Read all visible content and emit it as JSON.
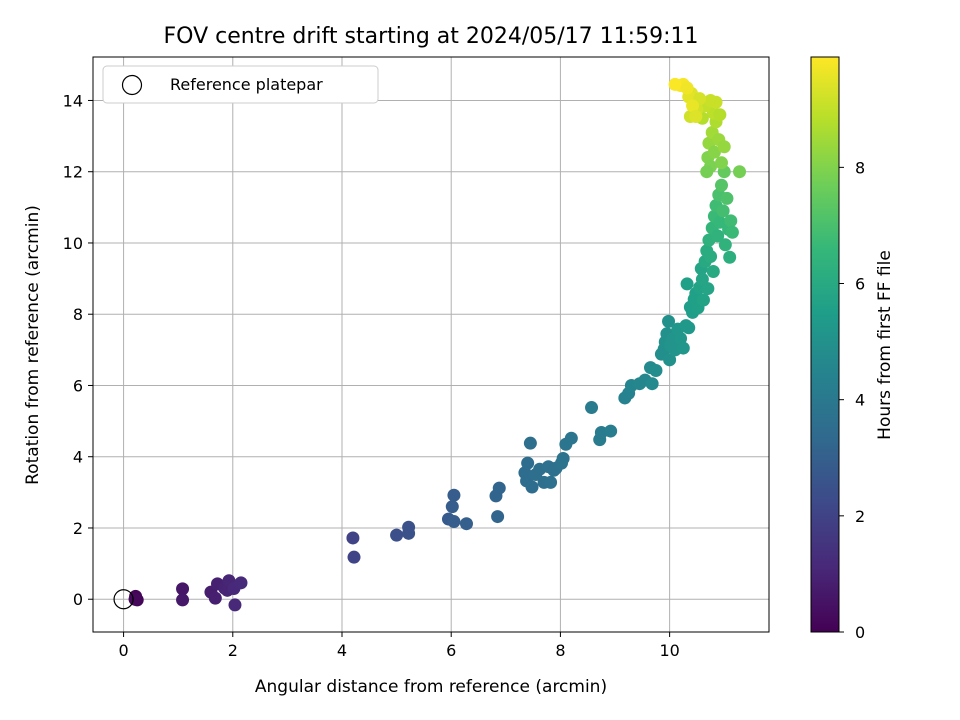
{
  "chart_data": {
    "type": "scatter",
    "title": "FOV centre drift starting at 2024/05/17 11:59:11",
    "xlabel": "Angular distance from reference (arcmin)",
    "ylabel": "Rotation from reference (arcmin)",
    "xlim": [
      -0.56,
      11.82
    ],
    "ylim": [
      -0.92,
      15.22
    ],
    "xticks": [
      0,
      2,
      4,
      6,
      8,
      10
    ],
    "yticks": [
      0,
      2,
      4,
      6,
      8,
      10,
      12,
      14
    ],
    "grid": true,
    "legend": {
      "position": "top-left",
      "entries": [
        "Reference platepar"
      ]
    },
    "reference_point": {
      "x": 0,
      "y": 0,
      "label": "Reference platepar",
      "marker": "open-circle"
    },
    "colorbar": {
      "label": "Hours from first FF file",
      "colormap": "viridis",
      "range": [
        0,
        9.9
      ],
      "ticks": [
        0,
        2,
        4,
        6,
        8
      ]
    },
    "color_scale": [
      "#440154",
      "#482878",
      "#3e4989",
      "#31688e",
      "#26828e",
      "#1f9e89",
      "#35b779",
      "#6ece58",
      "#b5de2b",
      "#fde725"
    ],
    "series": [
      {
        "color_variable": "hours",
        "points": [
          {
            "x": 0.22,
            "y": 0.08,
            "c": 0.1
          },
          {
            "x": 0.25,
            "y": -0.02,
            "c": 0.15
          },
          {
            "x": 0.21,
            "y": 0.0,
            "c": 0.2
          },
          {
            "x": 1.08,
            "y": 0.29,
            "c": 0.6
          },
          {
            "x": 1.08,
            "y": -0.02,
            "c": 0.65
          },
          {
            "x": 1.6,
            "y": 0.2,
            "c": 0.8
          },
          {
            "x": 1.68,
            "y": 0.03,
            "c": 0.85
          },
          {
            "x": 1.72,
            "y": 0.43,
            "c": 0.9
          },
          {
            "x": 1.85,
            "y": 0.31,
            "c": 0.95
          },
          {
            "x": 1.9,
            "y": 0.25,
            "c": 1.0
          },
          {
            "x": 1.93,
            "y": 0.52,
            "c": 1.05
          },
          {
            "x": 2.02,
            "y": 0.3,
            "c": 1.1
          },
          {
            "x": 2.04,
            "y": -0.16,
            "c": 1.1
          },
          {
            "x": 2.15,
            "y": 0.46,
            "c": 1.2
          },
          {
            "x": 4.2,
            "y": 1.72,
            "c": 2.0
          },
          {
            "x": 4.22,
            "y": 1.18,
            "c": 2.05
          },
          {
            "x": 5.0,
            "y": 1.8,
            "c": 2.4
          },
          {
            "x": 5.22,
            "y": 2.02,
            "c": 2.5
          },
          {
            "x": 5.22,
            "y": 1.85,
            "c": 2.5
          },
          {
            "x": 5.95,
            "y": 2.25,
            "c": 2.8
          },
          {
            "x": 6.02,
            "y": 2.6,
            "c": 2.9
          },
          {
            "x": 6.05,
            "y": 2.92,
            "c": 2.9
          },
          {
            "x": 6.05,
            "y": 2.18,
            "c": 2.9
          },
          {
            "x": 6.28,
            "y": 2.12,
            "c": 3.0
          },
          {
            "x": 6.82,
            "y": 2.9,
            "c": 3.2
          },
          {
            "x": 6.88,
            "y": 3.12,
            "c": 3.2
          },
          {
            "x": 6.85,
            "y": 2.32,
            "c": 3.2
          },
          {
            "x": 7.35,
            "y": 3.55,
            "c": 3.5
          },
          {
            "x": 7.4,
            "y": 3.82,
            "c": 3.5
          },
          {
            "x": 7.45,
            "y": 4.38,
            "c": 3.6
          },
          {
            "x": 7.38,
            "y": 3.32,
            "c": 3.5
          },
          {
            "x": 7.48,
            "y": 3.15,
            "c": 3.5
          },
          {
            "x": 7.55,
            "y": 3.5,
            "c": 3.6
          },
          {
            "x": 7.62,
            "y": 3.65,
            "c": 3.6
          },
          {
            "x": 7.7,
            "y": 3.28,
            "c": 3.6
          },
          {
            "x": 7.78,
            "y": 3.72,
            "c": 3.7
          },
          {
            "x": 7.82,
            "y": 3.28,
            "c": 3.7
          },
          {
            "x": 7.88,
            "y": 3.62,
            "c": 3.7
          },
          {
            "x": 7.92,
            "y": 3.68,
            "c": 3.7
          },
          {
            "x": 8.02,
            "y": 3.82,
            "c": 3.8
          },
          {
            "x": 8.05,
            "y": 3.95,
            "c": 3.8
          },
          {
            "x": 8.1,
            "y": 4.35,
            "c": 3.9
          },
          {
            "x": 8.2,
            "y": 4.52,
            "c": 3.9
          },
          {
            "x": 8.57,
            "y": 5.38,
            "c": 4.1
          },
          {
            "x": 8.72,
            "y": 4.48,
            "c": 4.1
          },
          {
            "x": 8.75,
            "y": 4.68,
            "c": 4.1
          },
          {
            "x": 8.92,
            "y": 4.72,
            "c": 4.2
          },
          {
            "x": 9.18,
            "y": 5.65,
            "c": 4.4
          },
          {
            "x": 9.25,
            "y": 5.78,
            "c": 4.4
          },
          {
            "x": 9.3,
            "y": 6.0,
            "c": 4.5
          },
          {
            "x": 9.45,
            "y": 6.05,
            "c": 4.6
          },
          {
            "x": 9.55,
            "y": 6.15,
            "c": 4.6
          },
          {
            "x": 9.65,
            "y": 6.5,
            "c": 4.7
          },
          {
            "x": 9.68,
            "y": 6.05,
            "c": 4.7
          },
          {
            "x": 9.75,
            "y": 6.42,
            "c": 4.8
          },
          {
            "x": 9.85,
            "y": 6.88,
            "c": 4.9
          },
          {
            "x": 9.9,
            "y": 7.02,
            "c": 4.9
          },
          {
            "x": 9.92,
            "y": 7.22,
            "c": 5.0
          },
          {
            "x": 9.95,
            "y": 7.45,
            "c": 5.0
          },
          {
            "x": 9.98,
            "y": 7.8,
            "c": 5.0
          },
          {
            "x": 10.0,
            "y": 6.72,
            "c": 5.0
          },
          {
            "x": 10.02,
            "y": 7.12,
            "c": 5.1
          },
          {
            "x": 10.05,
            "y": 7.3,
            "c": 5.1
          },
          {
            "x": 10.1,
            "y": 7.0,
            "c": 5.1
          },
          {
            "x": 10.15,
            "y": 7.58,
            "c": 5.2
          },
          {
            "x": 10.2,
            "y": 7.32,
            "c": 5.2
          },
          {
            "x": 10.25,
            "y": 7.05,
            "c": 5.2
          },
          {
            "x": 10.3,
            "y": 7.68,
            "c": 5.3
          },
          {
            "x": 10.35,
            "y": 7.62,
            "c": 5.3
          },
          {
            "x": 10.32,
            "y": 8.85,
            "c": 5.6
          },
          {
            "x": 10.38,
            "y": 8.2,
            "c": 5.5
          },
          {
            "x": 10.42,
            "y": 8.05,
            "c": 5.5
          },
          {
            "x": 10.45,
            "y": 8.42,
            "c": 5.6
          },
          {
            "x": 10.48,
            "y": 8.58,
            "c": 5.6
          },
          {
            "x": 10.52,
            "y": 8.18,
            "c": 5.6
          },
          {
            "x": 10.55,
            "y": 8.75,
            "c": 5.7
          },
          {
            "x": 10.58,
            "y": 9.28,
            "c": 5.8
          },
          {
            "x": 10.6,
            "y": 8.98,
            "c": 5.8
          },
          {
            "x": 10.62,
            "y": 8.4,
            "c": 5.7
          },
          {
            "x": 10.65,
            "y": 9.48,
            "c": 6.0
          },
          {
            "x": 10.68,
            "y": 9.78,
            "c": 6.1
          },
          {
            "x": 10.7,
            "y": 8.72,
            "c": 5.8
          },
          {
            "x": 10.72,
            "y": 10.08,
            "c": 6.3
          },
          {
            "x": 10.75,
            "y": 9.62,
            "c": 6.1
          },
          {
            "x": 10.78,
            "y": 10.42,
            "c": 6.5
          },
          {
            "x": 10.8,
            "y": 9.2,
            "c": 6.0
          },
          {
            "x": 10.82,
            "y": 10.75,
            "c": 6.7
          },
          {
            "x": 10.85,
            "y": 11.05,
            "c": 6.8
          },
          {
            "x": 10.88,
            "y": 10.2,
            "c": 6.4
          },
          {
            "x": 10.9,
            "y": 11.35,
            "c": 7.0
          },
          {
            "x": 10.92,
            "y": 10.58,
            "c": 6.6
          },
          {
            "x": 10.95,
            "y": 11.62,
            "c": 7.2
          },
          {
            "x": 10.98,
            "y": 10.9,
            "c": 6.9
          },
          {
            "x": 11.0,
            "y": 12.0,
            "c": 7.5
          },
          {
            "x": 11.02,
            "y": 9.95,
            "c": 6.4
          },
          {
            "x": 11.05,
            "y": 11.25,
            "c": 7.1
          },
          {
            "x": 11.08,
            "y": 10.38,
            "c": 6.6
          },
          {
            "x": 11.1,
            "y": 9.6,
            "c": 6.2
          },
          {
            "x": 11.12,
            "y": 10.62,
            "c": 6.8
          },
          {
            "x": 11.15,
            "y": 10.3,
            "c": 6.7
          },
          {
            "x": 11.28,
            "y": 12.0,
            "c": 7.8
          },
          {
            "x": 10.7,
            "y": 12.4,
            "c": 8.0
          },
          {
            "x": 10.72,
            "y": 12.8,
            "c": 8.3
          },
          {
            "x": 10.75,
            "y": 12.15,
            "c": 7.9
          },
          {
            "x": 10.78,
            "y": 13.1,
            "c": 8.5
          },
          {
            "x": 10.82,
            "y": 12.55,
            "c": 8.1
          },
          {
            "x": 10.85,
            "y": 13.4,
            "c": 8.7
          },
          {
            "x": 10.9,
            "y": 12.9,
            "c": 8.4
          },
          {
            "x": 10.95,
            "y": 12.25,
            "c": 8.0
          },
          {
            "x": 11.0,
            "y": 12.7,
            "c": 8.3
          },
          {
            "x": 10.8,
            "y": 13.65,
            "c": 8.9
          },
          {
            "x": 10.65,
            "y": 13.85,
            "c": 9.0
          },
          {
            "x": 10.75,
            "y": 14.0,
            "c": 9.1
          },
          {
            "x": 10.6,
            "y": 13.5,
            "c": 8.8
          },
          {
            "x": 10.68,
            "y": 12.0,
            "c": 7.8
          },
          {
            "x": 10.85,
            "y": 13.95,
            "c": 9.1
          },
          {
            "x": 10.92,
            "y": 13.6,
            "c": 8.8
          },
          {
            "x": 10.4,
            "y": 14.2,
            "c": 9.4
          },
          {
            "x": 10.45,
            "y": 13.95,
            "c": 9.3
          },
          {
            "x": 10.5,
            "y": 13.75,
            "c": 9.2
          },
          {
            "x": 10.35,
            "y": 14.1,
            "c": 9.5
          },
          {
            "x": 10.38,
            "y": 13.55,
            "c": 9.2
          },
          {
            "x": 10.55,
            "y": 14.05,
            "c": 9.3
          },
          {
            "x": 10.2,
            "y": 14.42,
            "c": 9.8
          },
          {
            "x": 10.25,
            "y": 14.45,
            "c": 9.8
          },
          {
            "x": 10.32,
            "y": 14.35,
            "c": 9.7
          },
          {
            "x": 10.1,
            "y": 14.45,
            "c": 9.85
          },
          {
            "x": 10.42,
            "y": 13.85,
            "c": 9.6
          },
          {
            "x": 10.48,
            "y": 13.55,
            "c": 9.4
          }
        ]
      }
    ]
  }
}
